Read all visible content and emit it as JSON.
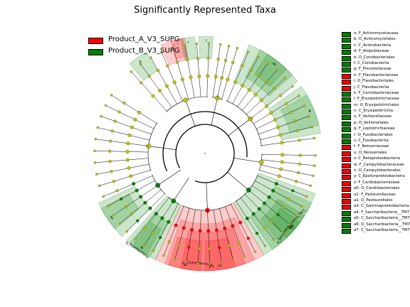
{
  "chart_data": {
    "type": "cladogram",
    "title": "Significantly Represented Taxa",
    "groups": [
      {
        "name": "Product_A_V3_SUPG",
        "color": "#ff0000"
      },
      {
        "name": "Product_B_V3_SUPG",
        "color": "#008000"
      }
    ],
    "ring_labels": [
      "p_Fusobacteria",
      "p_Proteobacteria",
      "p_Saccharibacteria_TM7_"
    ],
    "sector_letters": [
      "a",
      "b",
      "c",
      "d",
      "e",
      "f",
      "g",
      "h",
      "i",
      "j",
      "k",
      "l",
      "m",
      "n",
      "o",
      "p",
      "q",
      "r",
      "s",
      "t",
      "u",
      "v",
      "w",
      "x",
      "y",
      "z",
      "a0",
      "a1",
      "a2",
      "a3",
      "a4",
      "a5",
      "a6",
      "a7"
    ],
    "taxa": [
      {
        "key": "a",
        "label": "a: F_Actinomycetaceae",
        "group": "Product_B_V3_SUPG"
      },
      {
        "key": "b",
        "label": "b: O_Actinomycetales",
        "group": "Product_B_V3_SUPG"
      },
      {
        "key": "c",
        "label": "c: C_Actinobacteria",
        "group": "Product_B_V3_SUPG"
      },
      {
        "key": "d",
        "label": "d: F_Atopobiaceae",
        "group": "Product_B_V3_SUPG"
      },
      {
        "key": "e",
        "label": "e: O_Coriobacteriales",
        "group": "Product_B_V3_SUPG"
      },
      {
        "key": "f",
        "label": "f: C_Coriobacteriia",
        "group": "Product_B_V3_SUPG"
      },
      {
        "key": "g",
        "label": "g: F_Prevotellaceae",
        "group": "Product_B_V3_SUPG"
      },
      {
        "key": "h",
        "label": "h: F_Flavobacteriaceae",
        "group": "Product_A_V3_SUPG"
      },
      {
        "key": "i",
        "label": "i: O_Flavobacteriales",
        "group": "Product_A_V3_SUPG"
      },
      {
        "key": "j",
        "label": "j: C_Flavobacteriia",
        "group": "Product_A_V3_SUPG"
      },
      {
        "key": "k",
        "label": "k: F_Carnobacteriaceae",
        "group": "Product_B_V3_SUPG"
      },
      {
        "key": "l",
        "label": "l: F_Erysipelotrichaceae",
        "group": "Product_B_V3_SUPG"
      },
      {
        "key": "m",
        "label": "m: O_Erysipelotrichales",
        "group": "Product_B_V3_SUPG"
      },
      {
        "key": "n",
        "label": "n: C_Erysipelotrichia",
        "group": "Product_B_V3_SUPG"
      },
      {
        "key": "o",
        "label": "o: F_Veillonellaceae",
        "group": "Product_B_V3_SUPG"
      },
      {
        "key": "p",
        "label": "p: O_Veillonellales",
        "group": "Product_B_V3_SUPG"
      },
      {
        "key": "q",
        "label": "q: F_Leptotrichiaceae",
        "group": "Product_B_V3_SUPG"
      },
      {
        "key": "r",
        "label": "r: O_Fusobacteriales",
        "group": "Product_B_V3_SUPG"
      },
      {
        "key": "s",
        "label": "s: C_Fusobacteriia",
        "group": "Product_B_V3_SUPG"
      },
      {
        "key": "t",
        "label": "t: F_Neisseriaceae",
        "group": "Product_A_V3_SUPG"
      },
      {
        "key": "u",
        "label": "u: O_Neisseriales",
        "group": "Product_A_V3_SUPG"
      },
      {
        "key": "v",
        "label": "v: C_Betaproteobacteria",
        "group": "Product_A_V3_SUPG"
      },
      {
        "key": "w",
        "label": "w: F_Campylobacteraceae",
        "group": "Product_A_V3_SUPG"
      },
      {
        "key": "x",
        "label": "x: O_Campylobacterales",
        "group": "Product_A_V3_SUPG"
      },
      {
        "key": "y",
        "label": "y: C_Epsilonproteobacteria",
        "group": "Product_A_V3_SUPG"
      },
      {
        "key": "z",
        "label": "z: F_Cardiobacteriaceae",
        "group": "Product_A_V3_SUPG"
      },
      {
        "key": "a0",
        "label": "a0: O_Cardiobacteriales",
        "group": "Product_A_V3_SUPG"
      },
      {
        "key": "a1",
        "label": "a1: F_Pasteurellaceae",
        "group": "Product_A_V3_SUPG"
      },
      {
        "key": "a2",
        "label": "a2: O_Pasteurellales",
        "group": "Product_A_V3_SUPG"
      },
      {
        "key": "a3",
        "label": "a3: C_Gammaproteobacteria",
        "group": "Product_A_V3_SUPG"
      },
      {
        "key": "a4",
        "label": "a4: F_Saccharibacteria__TM7_",
        "group": "Product_B_V3_SUPG"
      },
      {
        "key": "a5",
        "label": "a5: C_Saccharibacteria__TM7_",
        "group": "Product_B_V3_SUPG"
      },
      {
        "key": "a6",
        "label": "a6: O_Saccharibacteria__TM7_",
        "group": "Product_B_V3_SUPG"
      },
      {
        "key": "a7",
        "label": "a7: C_Saccharibacteria__TM7_",
        "group": "Product_B_V3_SUPG"
      }
    ]
  }
}
